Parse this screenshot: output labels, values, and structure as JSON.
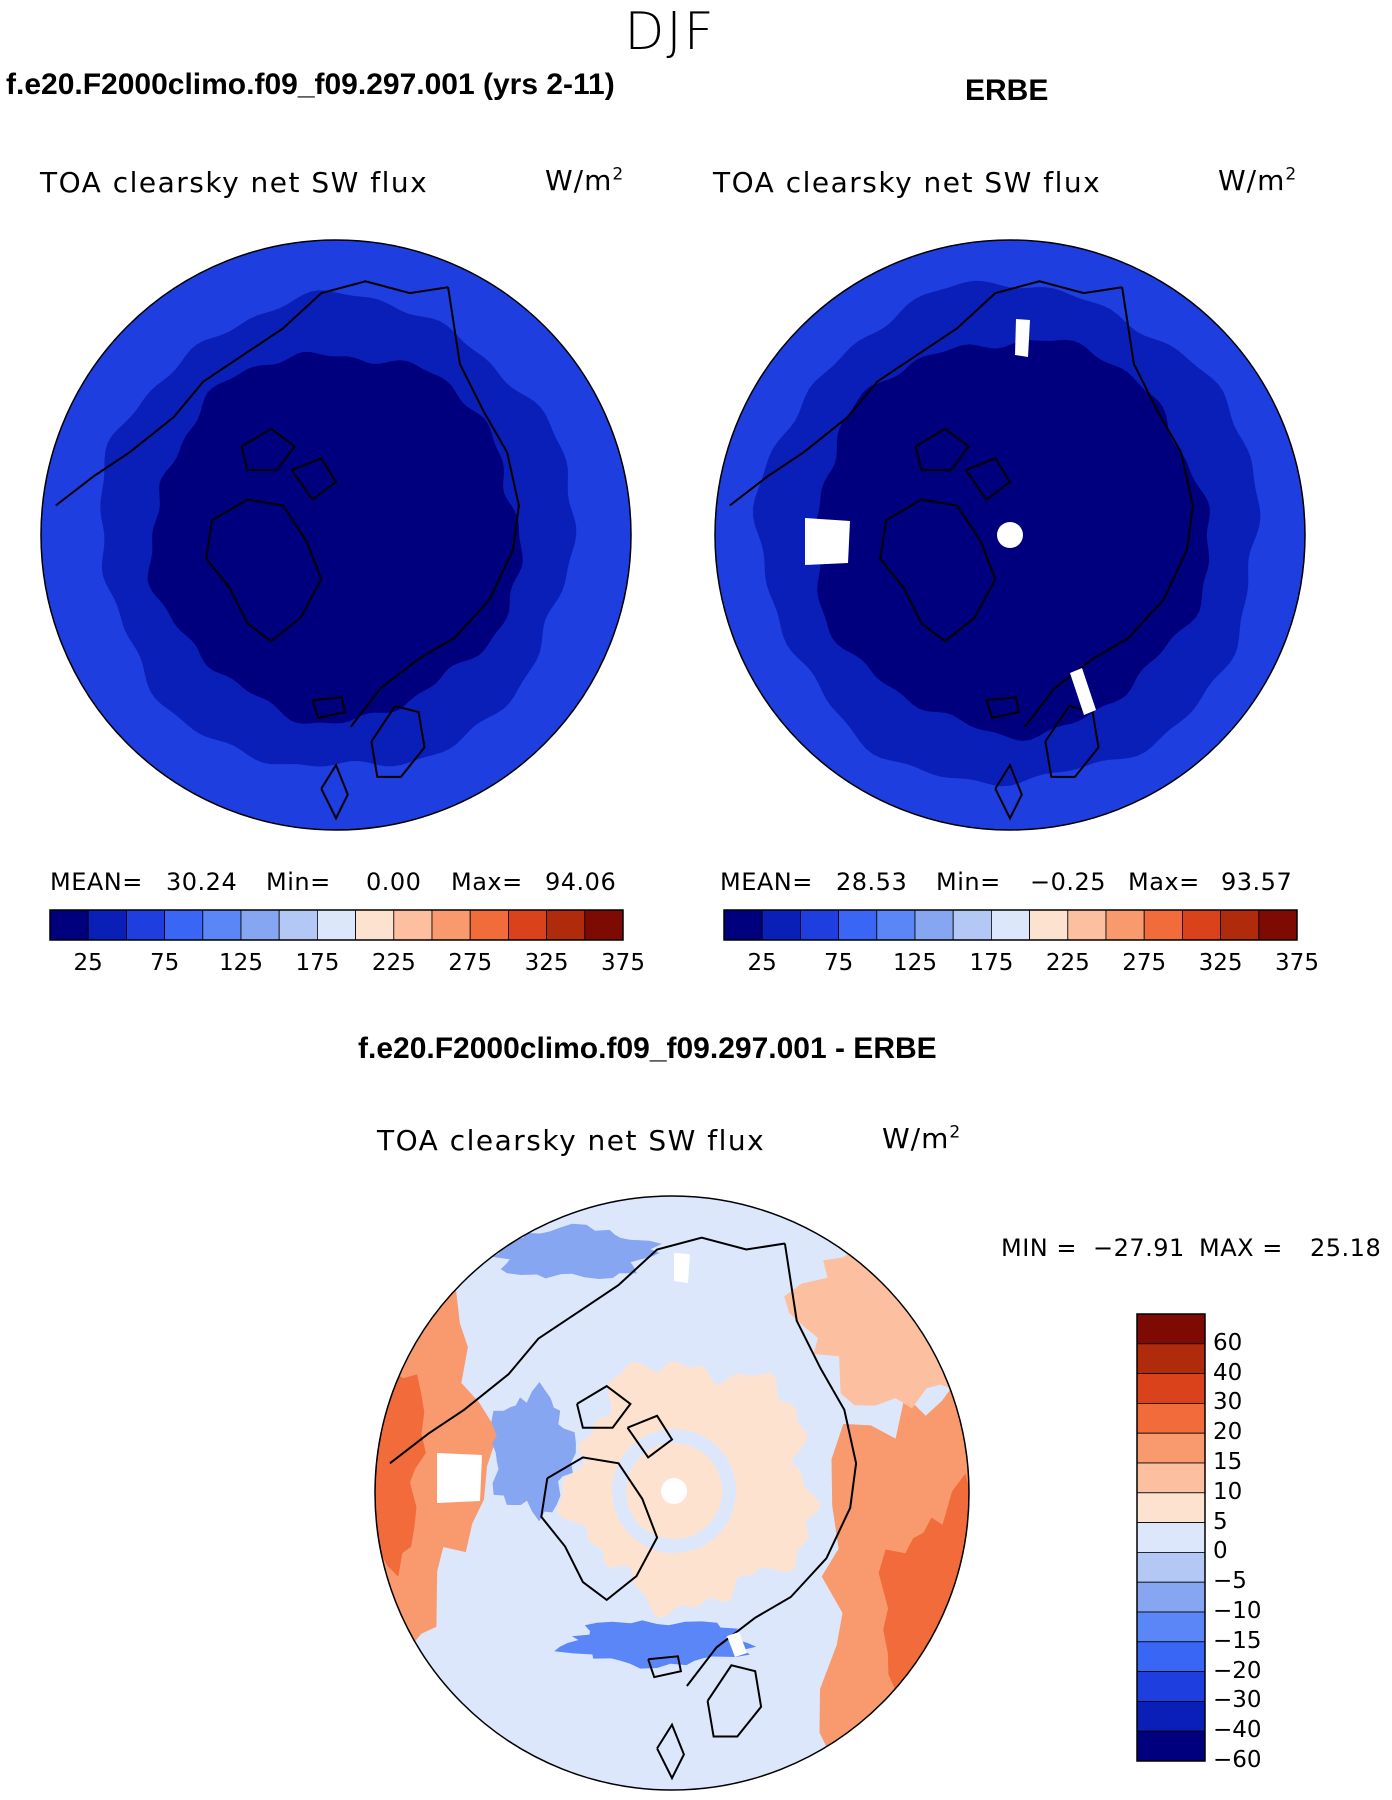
{
  "page": {
    "season": "DJF",
    "left_title": "f.e20.F2000climo.f09_f09.297.001 (yrs 2-11)",
    "right_title": "ERBE",
    "diff_title": "f.e20.F2000climo.f09_f09.297.001 - ERBE"
  },
  "chart_data": [
    {
      "type": "heatmap",
      "projection": "north-polar-stereographic",
      "title": "f.e20.F2000climo.f09_f09.297.001 (yrs 2-11)",
      "variable": "TOA clearsky net SW flux",
      "units": "W/m",
      "units_exp": "2",
      "stats": {
        "mean_label": "MEAN=",
        "mean": "30.24",
        "min_label": "Min=",
        "min": "0.00",
        "max_label": "Max=",
        "max": "94.06"
      },
      "colorbar": {
        "levels": [
          "25",
          "75",
          "125",
          "175",
          "225",
          "275",
          "325",
          "375"
        ],
        "colors": [
          "#00007f",
          "#0a1fb8",
          "#1e3ee0",
          "#3a66f5",
          "#5a86f7",
          "#86a6f2",
          "#b4c8f6",
          "#dde7fb",
          "#fde3cf",
          "#fcc0a0",
          "#f99a6e",
          "#f26b3b",
          "#d9421b",
          "#b02a0c",
          "#7e0a04"
        ]
      },
      "field_bands": [
        {
          "colat_max_deg": 28,
          "color": "#00007f"
        },
        {
          "colat_max_deg": 36,
          "color": "#0a1fb8"
        },
        {
          "colat_max_deg": 45,
          "color": "#1e3ee0"
        }
      ],
      "missing_data": false
    },
    {
      "type": "heatmap",
      "projection": "north-polar-stereographic",
      "title": "ERBE",
      "variable": "TOA clearsky net SW flux",
      "units": "W/m",
      "units_exp": "2",
      "stats": {
        "mean_label": "MEAN=",
        "mean": "28.53",
        "min_label": "Min=",
        "min": "−0.25",
        "max_label": "Max=",
        "max": "93.57"
      },
      "colorbar": {
        "levels": [
          "25",
          "75",
          "125",
          "175",
          "225",
          "275",
          "325",
          "375"
        ],
        "colors": [
          "#00007f",
          "#0a1fb8",
          "#1e3ee0",
          "#3a66f5",
          "#5a86f7",
          "#86a6f2",
          "#b4c8f6",
          "#dde7fb",
          "#fde3cf",
          "#fcc0a0",
          "#f99a6e",
          "#f26b3b",
          "#d9421b",
          "#b02a0c",
          "#7e0a04"
        ]
      },
      "field_bands": [
        {
          "colat_max_deg": 30,
          "color": "#00007f"
        },
        {
          "colat_max_deg": 38,
          "color": "#0a1fb8"
        },
        {
          "colat_max_deg": 45,
          "color": "#1e3ee0"
        }
      ],
      "missing_data": true
    },
    {
      "type": "heatmap",
      "projection": "north-polar-stereographic",
      "title": "f.e20.F2000climo.f09_f09.297.001 - ERBE",
      "variable": "TOA clearsky net SW flux",
      "units": "W/m",
      "units_exp": "2",
      "stats": {
        "min_label": "MIN =",
        "min": "−27.91",
        "max_label": "MAX =",
        "max": "25.18"
      },
      "colorbar": {
        "levels": [
          "60",
          "40",
          "30",
          "20",
          "15",
          "10",
          "5",
          "0",
          "−5",
          "−10",
          "−15",
          "−20",
          "−30",
          "−40",
          "−60"
        ],
        "colors": [
          "#7e0a04",
          "#b02a0c",
          "#d9421b",
          "#f26b3b",
          "#f99a6e",
          "#fcc0a0",
          "#fde3cf",
          "#dde7fb",
          "#b4c8f6",
          "#86a6f2",
          "#5a86f7",
          "#3a66f5",
          "#1e3ee0",
          "#0a1fb8",
          "#00007f"
        ]
      },
      "missing_data": true
    }
  ]
}
